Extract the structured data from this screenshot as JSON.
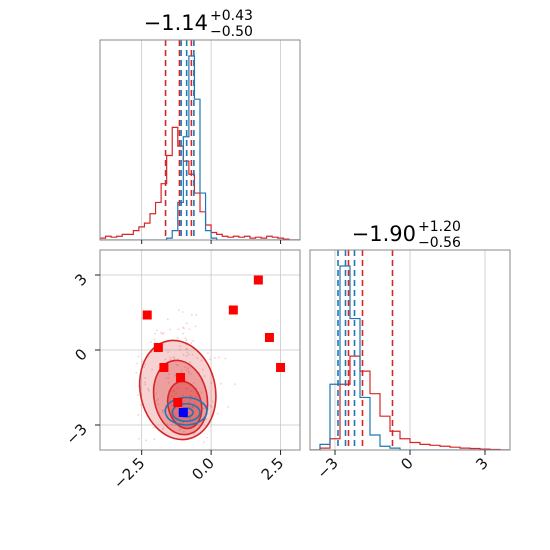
{
  "chart_data": {
    "type": "corner",
    "colors": {
      "primary": "#d62728",
      "secondary": "#1f77b4",
      "marker_alt": "#0000ff"
    },
    "parameters": [
      {
        "title": {
          "main": "−1.14",
          "sup": "+0.43",
          "sub": "−0.50"
        },
        "range": [
          -4,
          3.2
        ],
        "ticks": [
          -2.5,
          0.0,
          2.5
        ],
        "tick_labels": [
          "−2.5",
          "0.0",
          "2.5"
        ],
        "quantiles": {
          "primary": [
            -1.64,
            -1.14,
            -0.71
          ],
          "secondary": [
            -1.08,
            -0.88,
            -0.62
          ]
        }
      },
      {
        "title": {
          "main": "−1.90",
          "sup": "+1.20",
          "sub": "−0.56"
        },
        "range": [
          -4,
          4
        ],
        "ticks": [
          -3,
          0,
          3
        ],
        "tick_labels": [
          "−3",
          "0",
          "3"
        ],
        "quantiles": {
          "primary": [
            -2.46,
            -1.9,
            -0.7
          ],
          "secondary": [
            -2.88,
            -2.58,
            -2.22
          ]
        }
      }
    ],
    "hist_bins": [
      -4.0,
      -3.8,
      -3.6,
      -3.4,
      -3.2,
      -3.0,
      -2.8,
      -2.6,
      -2.4,
      -2.2,
      -2.0,
      -1.8,
      -1.6,
      -1.4,
      -1.2,
      -1.0,
      -0.8,
      -0.6,
      -0.4,
      -0.2,
      0.0,
      0.2,
      0.4,
      0.6,
      0.8,
      1.0,
      1.2,
      1.4,
      1.6,
      1.8,
      2.0,
      2.2,
      2.4,
      2.6,
      2.8,
      3.0,
      3.2
    ],
    "hist_p1_primary": [
      0.01,
      0.02,
      0.015,
      0.02,
      0.03,
      0.03,
      0.05,
      0.07,
      0.09,
      0.14,
      0.2,
      0.3,
      0.45,
      0.6,
      0.5,
      0.42,
      0.35,
      0.25,
      0.15,
      0.08,
      0.04,
      0.03,
      0.02,
      0.015,
      0.02,
      0.015,
      0.02,
      0.01,
      0.015,
      0.01,
      0.02,
      0.015,
      0.01,
      0.005,
      0.0,
      0.0
    ],
    "hist_p1_secondary": [
      0,
      0,
      0,
      0,
      0,
      0,
      0,
      0,
      0,
      0,
      0,
      0,
      0.01,
      0.05,
      0.2,
      0.55,
      0.98,
      0.75,
      0.25,
      0.05,
      0.01,
      0,
      0,
      0,
      0,
      0,
      0,
      0,
      0,
      0,
      0,
      0,
      0,
      0,
      0,
      0
    ],
    "hist2_bins": [
      -4.0,
      -3.6,
      -3.2,
      -2.8,
      -2.4,
      -2.0,
      -1.6,
      -1.2,
      -0.8,
      -0.4,
      0.0,
      0.4,
      0.8,
      1.2,
      1.6,
      2.0,
      2.4,
      2.8,
      3.2,
      3.6,
      4.0
    ],
    "hist_p2_primary": [
      0.0,
      0.01,
      0.06,
      0.35,
      0.5,
      0.42,
      0.3,
      0.18,
      0.1,
      0.06,
      0.04,
      0.03,
      0.025,
      0.02,
      0.015,
      0.01,
      0.008,
      0.005,
      0.003,
      0.0
    ],
    "hist_p2_secondary": [
      0.0,
      0.03,
      0.35,
      0.98,
      0.7,
      0.28,
      0.08,
      0.02,
      0.01,
      0.0,
      0,
      0,
      0,
      0,
      0,
      0,
      0,
      0,
      0,
      0
    ],
    "markers_primary": [
      {
        "x": -2.3,
        "y": 1.4
      },
      {
        "x": -1.9,
        "y": 0.1
      },
      {
        "x": -1.7,
        "y": -0.7
      },
      {
        "x": -1.1,
        "y": -1.1
      },
      {
        "x": -1.2,
        "y": -2.1
      },
      {
        "x": 0.8,
        "y": 1.6
      },
      {
        "x": 1.7,
        "y": 2.8
      },
      {
        "x": 2.1,
        "y": 0.5
      },
      {
        "x": 2.5,
        "y": -0.7
      }
    ],
    "marker_alt": {
      "x": -1.0,
      "y": -2.5
    },
    "contours_primary": [
      {
        "cx": -1.2,
        "cy": -1.6,
        "rx": 1.35,
        "ry": 2.0,
        "opacity": 0.38
      },
      {
        "cx": -1.1,
        "cy": -1.9,
        "rx": 0.95,
        "ry": 1.5,
        "opacity": 0.55
      },
      {
        "cx": -0.95,
        "cy": -2.2,
        "rx": 0.6,
        "ry": 0.95,
        "opacity": 0.7
      }
    ],
    "contours_secondary": [
      {
        "cx": -0.9,
        "cy": -2.45,
        "rx": 0.75,
        "ry": 0.55
      },
      {
        "cx": -0.9,
        "cy": -2.5,
        "rx": 0.5,
        "ry": 0.35
      },
      {
        "cx": -0.9,
        "cy": -2.5,
        "rx": 0.25,
        "ry": 0.18
      }
    ]
  }
}
